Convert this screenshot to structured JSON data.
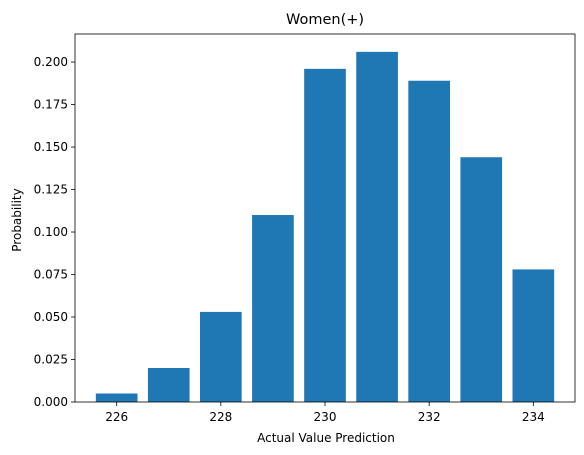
{
  "chart_data": {
    "type": "bar",
    "title": "Women(+)",
    "xlabel": "Actual Value Prediction",
    "ylabel": "Probability",
    "categories": [
      226,
      227,
      228,
      229,
      230,
      231,
      232,
      233,
      234
    ],
    "values": [
      0.005,
      0.02,
      0.053,
      0.11,
      0.196,
      0.206,
      0.189,
      0.144,
      0.078
    ],
    "xlim": [
      225.2,
      234.8
    ],
    "ylim": [
      0,
      0.2165
    ],
    "xticks": [
      226,
      228,
      230,
      232,
      234
    ],
    "yticks": [
      0.0,
      0.025,
      0.05,
      0.075,
      0.1,
      0.125,
      0.15,
      0.175,
      0.2
    ],
    "ytick_labels": [
      "0.000",
      "0.025",
      "0.050",
      "0.075",
      "0.100",
      "0.125",
      "0.150",
      "0.175",
      "0.200"
    ],
    "bar_color": "#1f77b4",
    "grid": false
  }
}
